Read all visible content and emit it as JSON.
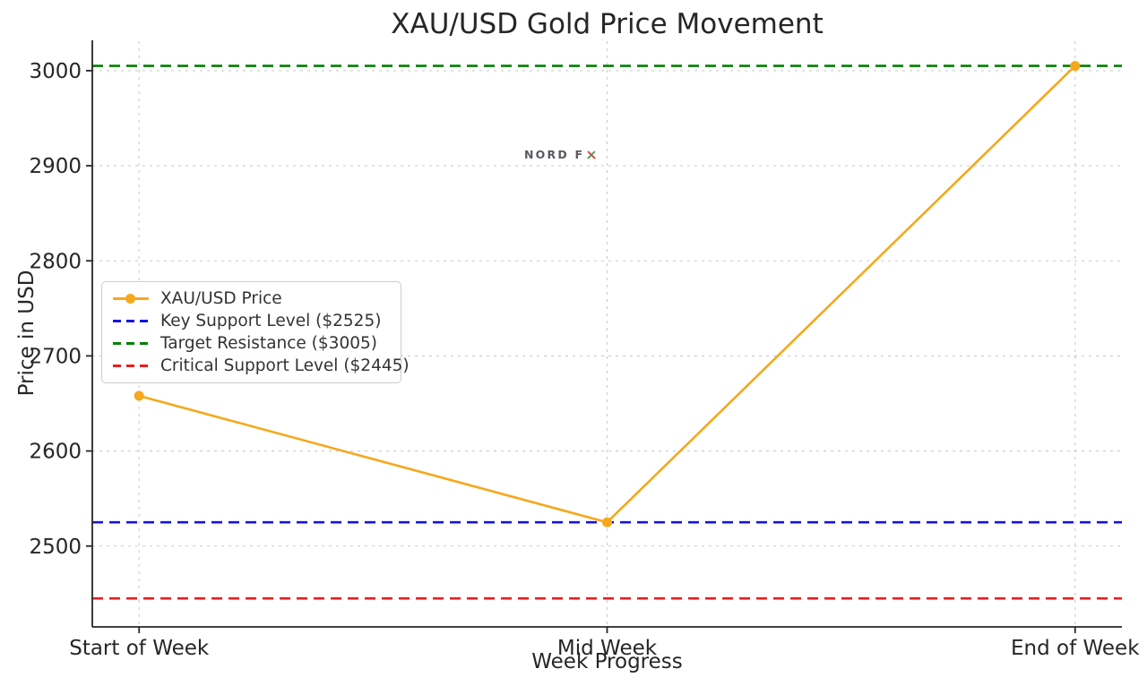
{
  "figure": {
    "watermark": {
      "full_text": "NORD FX",
      "main": "NORD F",
      "x_letter": "X",
      "x_green": "#3C9E4D",
      "x_red": "#D93A3A"
    }
  },
  "chart_data": {
    "type": "line",
    "title": "XAU/USD Gold Price Movement",
    "xlabel": "Week Progress",
    "ylabel": "Price in USD",
    "categories": [
      "Start of Week",
      "Mid Week",
      "End of Week"
    ],
    "series": [
      {
        "name": "XAU/USD Price",
        "values": [
          2658,
          2525,
          3005
        ],
        "color": "#F5A81C",
        "marker": "circle",
        "style": "solid"
      }
    ],
    "reference_lines": [
      {
        "label": "Key Support Level ($2525)",
        "value": 2525,
        "color": "#1414E6",
        "style": "dashed"
      },
      {
        "label": "Target Resistance ($3005)",
        "value": 3005,
        "color": "#008000",
        "style": "dashed"
      },
      {
        "label": "Critical Support Level ($2445)",
        "value": 2445,
        "color": "#EE1C1C",
        "style": "dashed"
      }
    ],
    "yticks": [
      2500,
      2600,
      2700,
      2800,
      2900,
      3000
    ],
    "ylim": [
      2415,
      3031
    ],
    "xlim": [
      -0.1,
      2.1
    ],
    "grid": true,
    "grid_color": "#cccccc",
    "axis_color": "#262626",
    "tick_label_color": "#262626",
    "legend_position": "center-left"
  }
}
